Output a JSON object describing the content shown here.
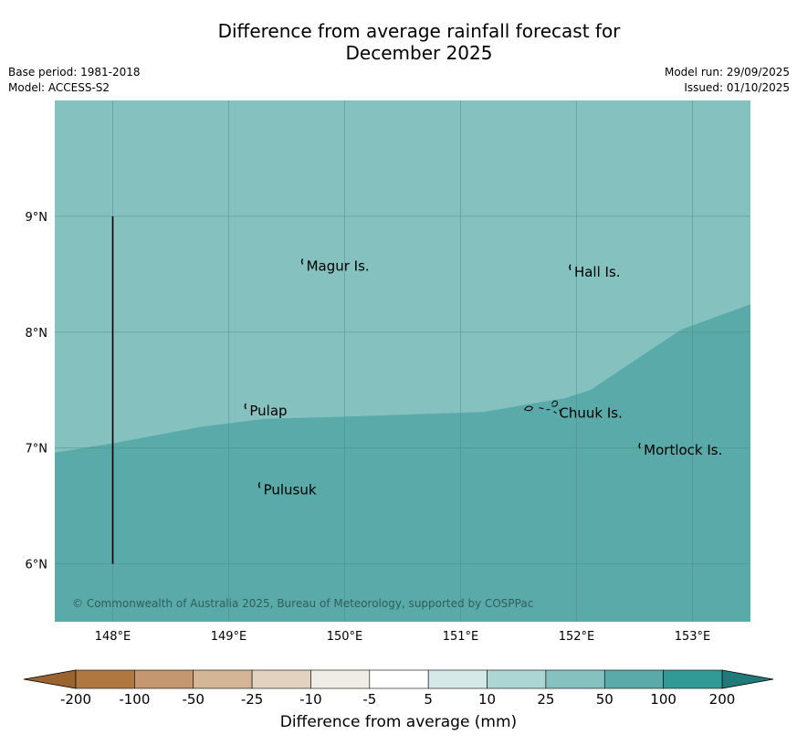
{
  "title_line1": "Difference from average rainfall forecast for",
  "title_line2": "December 2025",
  "base_period": "Base period: 1981-2018",
  "model": "Model: ACCESS-S2",
  "model_run": "Model run: 29/09/2025",
  "issued": "Issued: 01/10/2025",
  "copyright": "© Commonwealth of Australia 2025, Bureau of Meteorology, supported by COSPPac",
  "lon_labels": [
    "148°E",
    "149°E",
    "150°E",
    "151°E",
    "152°E",
    "153°E"
  ],
  "lat_labels": [
    "9°N",
    "8°N",
    "7°N",
    "6°N"
  ],
  "places": [
    {
      "name": "Magur Is.",
      "lon": 149.67,
      "lat": 8.57
    },
    {
      "name": "Hall Is.",
      "lon": 151.98,
      "lat": 8.52
    },
    {
      "name": "Pulap",
      "lon": 149.18,
      "lat": 7.32
    },
    {
      "name": "Chuuk Is.",
      "lon": 151.85,
      "lat": 7.3
    },
    {
      "name": "Mortlock Is.",
      "lon": 152.58,
      "lat": 6.98
    },
    {
      "name": "Pulusuk",
      "lon": 149.3,
      "lat": 6.64
    }
  ],
  "colorbar": {
    "ticks": [
      "-200",
      "-100",
      "-50",
      "-25",
      "-10",
      "-5",
      "5",
      "10",
      "25",
      "50",
      "100",
      "200"
    ],
    "colors": [
      "#b07840",
      "#c49770",
      "#d4b595",
      "#e4d2c0",
      "#efede6",
      "#ffffff",
      "#d5eae8",
      "#acd6d3",
      "#84c1bf",
      "#5aaaa9",
      "#329a96"
    ],
    "low_extend_color": "#9a6430",
    "high_extend_color": "#207a77",
    "label": "Difference from average (mm)"
  },
  "map_colors": {
    "band_25_50": "#84c1bf",
    "band_50_100": "#5aaaa9",
    "grid": "#4f8a89",
    "boundary": "#000000"
  },
  "extent": {
    "lon": [
      147.5,
      153.5
    ],
    "lat": [
      5.5,
      10.0
    ]
  },
  "boundary_line": {
    "lon": 148.0,
    "lat_from": 6.0,
    "lat_to": 9.0
  },
  "contour_25_50_boundary": [
    [
      147.5,
      6.96
    ],
    [
      148.0,
      7.04
    ],
    [
      148.75,
      7.18
    ],
    [
      149.3,
      7.25
    ],
    [
      150.0,
      7.27
    ],
    [
      151.2,
      7.31
    ],
    [
      151.6,
      7.38
    ],
    [
      151.9,
      7.43
    ],
    [
      152.12,
      7.5
    ],
    [
      152.9,
      8.02
    ],
    [
      153.5,
      8.24
    ]
  ]
}
